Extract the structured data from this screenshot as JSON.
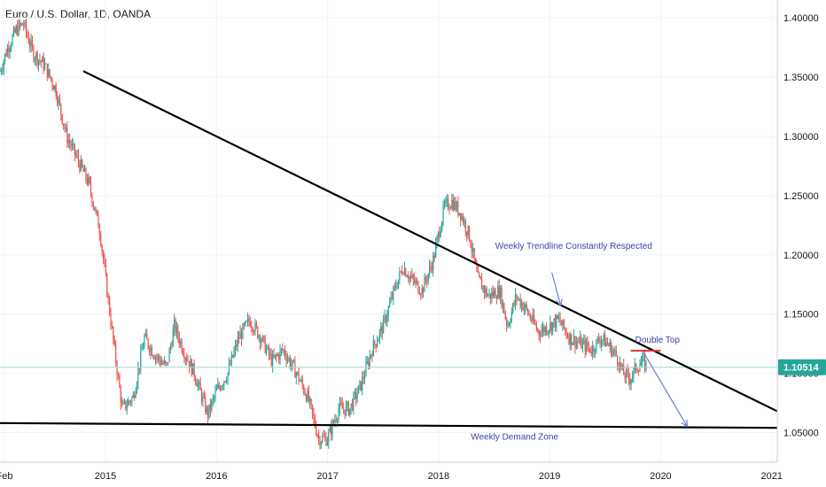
{
  "header": {
    "title": "Euro / U.S. Dollar, 1D, OANDA"
  },
  "colors": {
    "up": "#26a69a",
    "down": "#ef5350",
    "trendline": "#000000",
    "annotation_text": "#3d3fa8",
    "arrow": "#6b7fd0",
    "last_price_bg": "#26a69a",
    "last_price_line": "#9fd7d2",
    "double_top": "#e0353d",
    "grid": "#f0f3fa"
  },
  "chart_data": {
    "type": "candlestick",
    "title": "Euro / U.S. Dollar, 1D, OANDA",
    "symbol": "Euro / U.S. Dollar",
    "interval": "1D",
    "source": "OANDA",
    "last_price": "1.10514",
    "x_tick_labels": [
      "Feb",
      "2015",
      "2016",
      "2017",
      "2018",
      "2019",
      "2020",
      "2021"
    ],
    "x_ticks": [
      2014.09,
      2015.0,
      2016.0,
      2017.0,
      2018.0,
      2019.0,
      2020.0,
      2021.0
    ],
    "xlim": [
      2014.05,
      2021.05
    ],
    "y_ticks": [
      1.4,
      1.35,
      1.3,
      1.25,
      1.2,
      1.15,
      1.1,
      1.05
    ],
    "y_tick_labels": [
      "1.40000",
      "1.35000",
      "1.30000",
      "1.25000",
      "1.20000",
      "1.15000",
      "1.10000",
      "1.05000"
    ],
    "ylim": [
      1.025,
      1.415
    ],
    "price_path": [
      [
        2014.05,
        1.355
      ],
      [
        2014.12,
        1.375
      ],
      [
        2014.2,
        1.39
      ],
      [
        2014.26,
        1.395
      ],
      [
        2014.35,
        1.37
      ],
      [
        2014.45,
        1.36
      ],
      [
        2014.55,
        1.34
      ],
      [
        2014.65,
        1.3
      ],
      [
        2014.75,
        1.28
      ],
      [
        2014.85,
        1.26
      ],
      [
        2014.95,
        1.22
      ],
      [
        2015.02,
        1.165
      ],
      [
        2015.08,
        1.12
      ],
      [
        2015.15,
        1.07
      ],
      [
        2015.25,
        1.08
      ],
      [
        2015.35,
        1.13
      ],
      [
        2015.45,
        1.115
      ],
      [
        2015.55,
        1.105
      ],
      [
        2015.62,
        1.14
      ],
      [
        2015.7,
        1.12
      ],
      [
        2015.8,
        1.1
      ],
      [
        2015.92,
        1.065
      ],
      [
        2016.0,
        1.085
      ],
      [
        2016.1,
        1.1
      ],
      [
        2016.2,
        1.13
      ],
      [
        2016.3,
        1.145
      ],
      [
        2016.4,
        1.13
      ],
      [
        2016.5,
        1.11
      ],
      [
        2016.6,
        1.12
      ],
      [
        2016.72,
        1.1
      ],
      [
        2016.82,
        1.08
      ],
      [
        2016.92,
        1.045
      ],
      [
        2017.0,
        1.045
      ],
      [
        2017.1,
        1.07
      ],
      [
        2017.2,
        1.07
      ],
      [
        2017.3,
        1.09
      ],
      [
        2017.4,
        1.12
      ],
      [
        2017.5,
        1.14
      ],
      [
        2017.6,
        1.17
      ],
      [
        2017.68,
        1.19
      ],
      [
        2017.75,
        1.18
      ],
      [
        2017.85,
        1.17
      ],
      [
        2017.95,
        1.195
      ],
      [
        2018.05,
        1.24
      ],
      [
        2018.12,
        1.245
      ],
      [
        2018.2,
        1.235
      ],
      [
        2018.28,
        1.215
      ],
      [
        2018.35,
        1.18
      ],
      [
        2018.45,
        1.165
      ],
      [
        2018.55,
        1.17
      ],
      [
        2018.62,
        1.14
      ],
      [
        2018.7,
        1.165
      ],
      [
        2018.78,
        1.155
      ],
      [
        2018.9,
        1.135
      ],
      [
        2019.0,
        1.14
      ],
      [
        2019.08,
        1.145
      ],
      [
        2019.18,
        1.13
      ],
      [
        2019.28,
        1.125
      ],
      [
        2019.38,
        1.12
      ],
      [
        2019.46,
        1.13
      ],
      [
        2019.52,
        1.125
      ],
      [
        2019.6,
        1.115
      ],
      [
        2019.66,
        1.1
      ],
      [
        2019.72,
        1.095
      ],
      [
        2019.78,
        1.105
      ],
      [
        2019.84,
        1.11
      ],
      [
        2019.88,
        1.105
      ]
    ],
    "trendlines": [
      {
        "name": "weekly-trendline",
        "from": [
          2014.8,
          1.355
        ],
        "to": [
          2021.05,
          1.068
        ]
      },
      {
        "name": "weekly-demand-zone",
        "from": [
          2014.05,
          1.058
        ],
        "to": [
          2021.05,
          1.054
        ]
      }
    ],
    "double_top_level": {
      "from": [
        2019.73,
        1.119
      ],
      "to": [
        2020.0,
        1.119
      ]
    },
    "arrows": [
      {
        "name": "trendline-arrow",
        "from": [
          2019.02,
          1.185
        ],
        "to": [
          2019.1,
          1.157
        ]
      },
      {
        "name": "projection-arrow",
        "from": [
          2019.85,
          1.117
        ],
        "to": [
          2020.24,
          1.055
        ]
      }
    ],
    "annotations": [
      {
        "text": "Weekly Trendline Constantly Respected",
        "at": [
          2018.51,
          1.205
        ]
      },
      {
        "text": "Double Top",
        "at": [
          2019.77,
          1.126
        ]
      },
      {
        "text": "Weekly Demand Zone",
        "at": [
          2018.29,
          1.044
        ]
      }
    ]
  }
}
